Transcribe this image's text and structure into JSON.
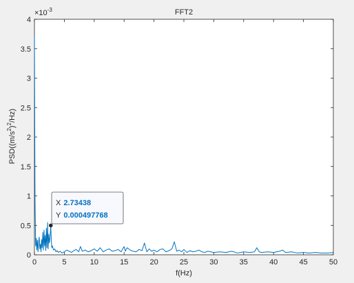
{
  "chart_data": {
    "type": "line",
    "title": "FFT2",
    "xlabel": "f(Hz)",
    "ylabel_parts": {
      "main": "PSD((m/s",
      "sup1": "2",
      "mid": ")",
      "sup2": "2",
      "end": "/Hz)"
    },
    "y_exponent_label": "×10",
    "y_exponent_power": "-3",
    "xlim": [
      0,
      50
    ],
    "ylim": [
      0,
      4
    ],
    "xticks": [
      0,
      5,
      10,
      15,
      20,
      25,
      30,
      35,
      40,
      45,
      50
    ],
    "yticks": [
      0,
      0.5,
      1,
      1.5,
      2,
      2.5,
      3,
      3.5,
      4
    ],
    "ytick_labels": [
      "0",
      "0.5",
      "1",
      "1.5",
      "2",
      "2.5",
      "3",
      "3.5",
      "4"
    ],
    "grid": false,
    "series": [
      {
        "color": "#0072bd",
        "x": [
          0,
          0.1,
          0.2,
          0.3,
          0.4,
          0.5,
          0.6,
          0.7,
          0.8,
          0.9,
          1.0,
          1.1,
          1.2,
          1.3,
          1.4,
          1.5,
          1.6,
          1.7,
          1.8,
          1.9,
          2.0,
          2.1,
          2.2,
          2.3,
          2.4,
          2.5,
          2.6,
          2.73438,
          2.8,
          2.9,
          3.0,
          3.2,
          3.4,
          3.6,
          3.8,
          4.0,
          4.3,
          4.6,
          5.0,
          5.4,
          5.8,
          6.2,
          6.6,
          7.0,
          7.4,
          7.7,
          8.0,
          8.5,
          9.0,
          9.5,
          10.0,
          10.5,
          11.0,
          11.5,
          12.0,
          12.5,
          13.0,
          13.5,
          14.0,
          14.5,
          15.0,
          15.2,
          15.5,
          16.0,
          16.5,
          17.0,
          17.5,
          18.0,
          18.4,
          18.8,
          19.2,
          19.6,
          20.0,
          20.5,
          21.0,
          21.5,
          22.0,
          22.5,
          23.0,
          23.4,
          23.8,
          24.2,
          24.6,
          25.0,
          25.5,
          26.0,
          26.5,
          27.0,
          27.5,
          28.0,
          28.5,
          29.0,
          29.5,
          30.0,
          31.0,
          32.0,
          33.0,
          34.0,
          35.0,
          36.0,
          36.8,
          37.2,
          37.6,
          38.0,
          39.0,
          40.0,
          41.0,
          41.5,
          42.0,
          43.0,
          44.0,
          45.0,
          46.0,
          47.0,
          48.0,
          49.0,
          50.0
        ],
        "y": [
          3.72,
          0.9,
          0.15,
          0.28,
          0.08,
          0.25,
          0.05,
          0.22,
          0.3,
          0.1,
          0.18,
          0.05,
          0.26,
          0.12,
          0.38,
          0.08,
          0.42,
          0.15,
          0.33,
          0.07,
          0.45,
          0.12,
          0.55,
          0.1,
          0.35,
          0.2,
          0.28,
          0.497768,
          0.3,
          0.12,
          0.15,
          0.08,
          0.1,
          0.05,
          0.07,
          0.04,
          0.06,
          0.03,
          0.05,
          0.08,
          0.06,
          0.04,
          0.07,
          0.09,
          0.05,
          0.14,
          0.06,
          0.08,
          0.05,
          0.07,
          0.1,
          0.06,
          0.12,
          0.05,
          0.08,
          0.1,
          0.06,
          0.07,
          0.09,
          0.05,
          0.14,
          0.06,
          0.12,
          0.08,
          0.06,
          0.05,
          0.09,
          0.07,
          0.2,
          0.05,
          0.1,
          0.06,
          0.08,
          0.05,
          0.09,
          0.1,
          0.05,
          0.07,
          0.1,
          0.22,
          0.06,
          0.08,
          0.05,
          0.09,
          0.04,
          0.07,
          0.05,
          0.06,
          0.08,
          0.05,
          0.04,
          0.06,
          0.05,
          0.04,
          0.05,
          0.04,
          0.06,
          0.03,
          0.05,
          0.04,
          0.05,
          0.12,
          0.05,
          0.04,
          0.05,
          0.04,
          0.06,
          0.08,
          0.04,
          0.05,
          0.03,
          0.04,
          0.03,
          0.04,
          0.03,
          0.03,
          0.04
        ]
      }
    ],
    "datatip": {
      "x_label": "X",
      "x_value": "2.73438",
      "y_label": "Y",
      "y_value": "0.000497768",
      "x": 2.73438,
      "y": 0.497768
    },
    "colors": {
      "line": "#0072bd",
      "datatip_value": "#0072bd",
      "axes": "#262626",
      "plot_bg": "#ffffff",
      "figure_bg": "#f0f0f0"
    }
  }
}
